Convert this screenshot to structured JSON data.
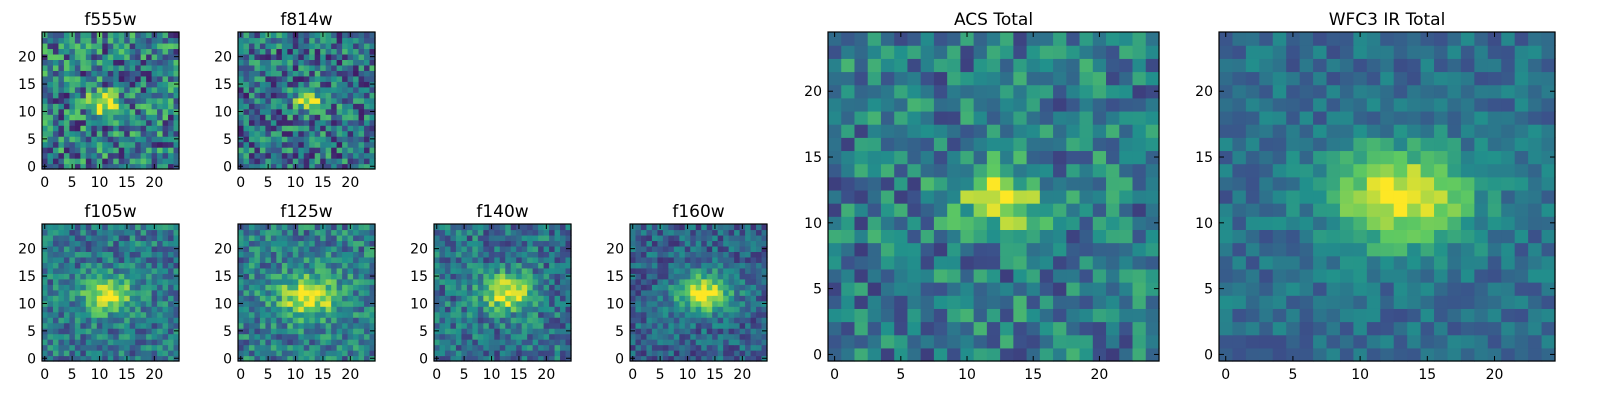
{
  "figure": {
    "description_type": "image grid",
    "colormap": [
      "#440154",
      "#3b528b",
      "#21918c",
      "#5ec962",
      "#fde725"
    ]
  },
  "chart_data": [
    {
      "type": "heatmap",
      "title": "f555w",
      "grid_size": 25,
      "center": [
        11,
        11.5
      ],
      "sigma": 1.7,
      "noise": 0.42,
      "background": 0.42,
      "seed": 11,
      "xticks": [
        0,
        5,
        10,
        15,
        20
      ],
      "yticks": [
        0,
        5,
        10,
        15,
        20
      ],
      "xlim": [
        0,
        24
      ],
      "ylim": [
        0,
        24
      ]
    },
    {
      "type": "heatmap",
      "title": "f814w",
      "grid_size": 25,
      "center": [
        12.5,
        12
      ],
      "sigma": 1.6,
      "noise": 0.38,
      "background": 0.38,
      "seed": 23,
      "xticks": [
        0,
        5,
        10,
        15,
        20
      ],
      "yticks": [
        0,
        5,
        10,
        15,
        20
      ],
      "xlim": [
        0,
        24
      ],
      "ylim": [
        0,
        24
      ]
    },
    {
      "type": "heatmap",
      "title": "f105w",
      "grid_size": 25,
      "center": [
        11.5,
        11.5
      ],
      "sigma": 2.6,
      "noise": 0.26,
      "background": 0.4,
      "seed": 37,
      "xticks": [
        0,
        5,
        10,
        15,
        20
      ],
      "yticks": [
        0,
        5,
        10,
        15,
        20
      ],
      "xlim": [
        0,
        24
      ],
      "ylim": [
        0,
        24
      ]
    },
    {
      "type": "heatmap",
      "title": "f125w",
      "grid_size": 25,
      "center": [
        12.5,
        11.5
      ],
      "sigma": 3.2,
      "noise": 0.28,
      "background": 0.42,
      "seed": 41,
      "xticks": [
        0,
        5,
        10,
        15,
        20
      ],
      "yticks": [
        0,
        5,
        10,
        15,
        20
      ],
      "xlim": [
        0,
        24
      ],
      "ylim": [
        0,
        24
      ]
    },
    {
      "type": "heatmap",
      "title": "f140w",
      "grid_size": 25,
      "center": [
        13,
        12
      ],
      "sigma": 2.8,
      "noise": 0.27,
      "background": 0.38,
      "seed": 53,
      "xticks": [
        0,
        5,
        10,
        15,
        20
      ],
      "yticks": [
        0,
        5,
        10,
        15,
        20
      ],
      "xlim": [
        0,
        24
      ],
      "ylim": [
        0,
        24
      ]
    },
    {
      "type": "heatmap",
      "title": "f160w",
      "grid_size": 25,
      "center": [
        13,
        12
      ],
      "sigma": 2.9,
      "noise": 0.22,
      "background": 0.32,
      "seed": 67,
      "xticks": [
        0,
        5,
        10,
        15,
        20
      ],
      "yticks": [
        0,
        5,
        10,
        15,
        20
      ],
      "xlim": [
        0,
        24
      ],
      "ylim": [
        0,
        24
      ]
    },
    {
      "type": "heatmap",
      "title": "ACS Total",
      "grid_size": 25,
      "center": [
        12.5,
        11.8
      ],
      "sigma": 1.9,
      "noise": 0.3,
      "background": 0.42,
      "seed": 79,
      "xticks": [
        0,
        5,
        10,
        15,
        20
      ],
      "yticks": [
        0,
        5,
        10,
        15,
        20
      ],
      "xlim": [
        0,
        24
      ],
      "ylim": [
        0,
        24
      ]
    },
    {
      "type": "heatmap",
      "title": "WFC3 IR Total",
      "grid_size": 25,
      "center": [
        13,
        12
      ],
      "sigma": 3.1,
      "noise": 0.16,
      "background": 0.36,
      "seed": 97,
      "xticks": [
        0,
        5,
        10,
        15,
        20
      ],
      "yticks": [
        0,
        5,
        10,
        15,
        20
      ],
      "xlim": [
        0,
        24
      ],
      "ylim": [
        0,
        24
      ]
    }
  ]
}
